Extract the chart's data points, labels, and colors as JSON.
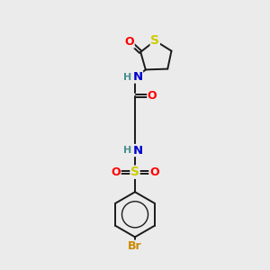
{
  "bg_color": "#ebebeb",
  "bond_color": "#1a1a1a",
  "atom_colors": {
    "O": "#ff0000",
    "S_ring": "#cccc00",
    "S_sulfonyl": "#cccc00",
    "N": "#0000cc",
    "Br": "#cc8800",
    "H": "#4a9090",
    "C": "#1a1a1a"
  },
  "font_size": 8.5,
  "bond_width": 1.4,
  "figsize": [
    3.0,
    3.0
  ],
  "dpi": 100
}
